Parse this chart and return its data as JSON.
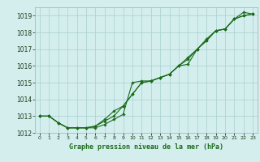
{
  "title": "Graphe pression niveau de la mer (hPa)",
  "background_color": "#d4eeee",
  "grid_color": "#aed4d4",
  "line_color": "#1a6b1a",
  "xlabel_color": "#1a6b1a",
  "ylim": [
    1012,
    1019.5
  ],
  "yticks": [
    1012,
    1013,
    1014,
    1015,
    1016,
    1017,
    1018,
    1019
  ],
  "xlim": [
    -0.5,
    23.5
  ],
  "xticks": [
    0,
    1,
    2,
    3,
    4,
    5,
    6,
    7,
    8,
    9,
    10,
    11,
    12,
    13,
    14,
    15,
    16,
    17,
    18,
    19,
    20,
    21,
    22,
    23
  ],
  "line1_x": [
    0,
    1,
    2,
    3,
    4,
    5,
    6,
    7,
    8,
    9,
    10,
    11,
    12,
    13,
    14,
    15,
    16,
    17,
    18,
    19,
    20,
    21,
    22,
    23
  ],
  "line1_y": [
    1013.0,
    1013.0,
    1012.6,
    1012.3,
    1012.3,
    1012.3,
    1012.3,
    1012.5,
    1012.8,
    1013.1,
    1015.0,
    1015.1,
    1015.1,
    1015.3,
    1015.5,
    1016.0,
    1016.1,
    1017.0,
    1017.6,
    1018.1,
    1018.2,
    1018.8,
    1019.0,
    1019.1
  ],
  "line2_x": [
    0,
    1,
    2,
    3,
    4,
    5,
    6,
    7,
    8,
    9,
    10,
    11,
    12,
    13,
    14,
    15,
    16,
    17,
    18,
    19,
    20,
    21,
    22,
    23
  ],
  "line2_y": [
    1013.0,
    1013.0,
    1012.6,
    1012.3,
    1012.3,
    1012.3,
    1012.4,
    1012.7,
    1013.0,
    1013.6,
    1014.3,
    1015.0,
    1015.1,
    1015.3,
    1015.5,
    1016.0,
    1016.4,
    1017.0,
    1017.5,
    1018.1,
    1018.2,
    1018.8,
    1019.0,
    1019.1
  ],
  "line3_x": [
    0,
    1,
    2,
    3,
    4,
    5,
    6,
    7,
    8,
    9,
    10,
    11,
    12,
    13,
    14,
    15,
    16,
    17,
    18,
    19,
    20,
    21,
    22,
    23
  ],
  "line3_y": [
    1013.0,
    1013.0,
    1012.6,
    1012.3,
    1012.3,
    1012.3,
    1012.4,
    1012.8,
    1013.3,
    1013.6,
    1014.3,
    1015.0,
    1015.1,
    1015.3,
    1015.5,
    1016.0,
    1016.5,
    1017.0,
    1017.5,
    1018.1,
    1018.2,
    1018.8,
    1019.2,
    1019.1
  ],
  "ytick_fontsize": 5.5,
  "xtick_fontsize": 4.5,
  "xlabel_fontsize": 6.0
}
